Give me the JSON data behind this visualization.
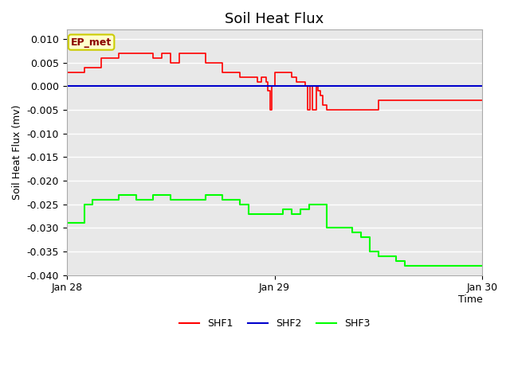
{
  "title": "Soil Heat Flux",
  "xlabel": "Time",
  "ylabel": "Soil Heat Flux (mv)",
  "ylim": [
    -0.04,
    0.012
  ],
  "yticks": [
    -0.04,
    -0.035,
    -0.03,
    -0.025,
    -0.02,
    -0.015,
    -0.01,
    -0.005,
    0.0,
    0.005,
    0.01
  ],
  "annotation_text": "EP_met",
  "annotation_color": "#8B0000",
  "annotation_bg": "#FFFFCC",
  "annotation_edge": "#CCCC00",
  "bg_color": "#E8E8E8",
  "shf1_color": "#FF0000",
  "shf2_color": "#0000CC",
  "shf3_color": "#00FF00",
  "grid_color": "#FFFFFF",
  "title_fontsize": 13,
  "label_fontsize": 9,
  "tick_fontsize": 9,
  "legend_fontsize": 9,
  "shf1_t": [
    0,
    2,
    4,
    6,
    8,
    10,
    11,
    12,
    13,
    14,
    16,
    18,
    20,
    21,
    22,
    22.5,
    23,
    23.2,
    23.5,
    23.7,
    24.0,
    24.2,
    24.5,
    25,
    26,
    26.5,
    27,
    27.5,
    27.8,
    28.1,
    28.4,
    28.8,
    29.0,
    29.3,
    29.6,
    30,
    31,
    33,
    36,
    38,
    40,
    42,
    44,
    46,
    48
  ],
  "shf1_v": [
    0.003,
    0.004,
    0.006,
    0.007,
    0.007,
    0.006,
    0.007,
    0.005,
    0.007,
    0.007,
    0.005,
    0.003,
    0.002,
    0.002,
    0.001,
    0.002,
    0.001,
    -0.001,
    -0.005,
    0.0,
    0.003,
    0.003,
    0.003,
    0.003,
    0.002,
    0.001,
    0.001,
    0.0,
    -0.005,
    0.0,
    -0.005,
    0.0,
    -0.001,
    -0.002,
    -0.004,
    -0.005,
    -0.005,
    -0.005,
    -0.003,
    -0.003,
    -0.003,
    -0.003,
    -0.003,
    -0.003,
    -0.003
  ],
  "shf3_t": [
    0,
    1,
    2,
    3,
    4,
    5,
    6,
    8,
    10,
    12,
    14,
    16,
    18,
    20,
    21,
    22,
    23,
    24,
    25,
    26,
    27,
    28,
    28.5,
    29,
    30,
    31,
    32,
    33,
    34,
    35,
    36,
    37,
    38,
    39,
    40,
    42,
    44,
    46,
    48
  ],
  "shf3_v": [
    -0.029,
    -0.029,
    -0.025,
    -0.024,
    -0.024,
    -0.024,
    -0.023,
    -0.024,
    -0.023,
    -0.024,
    -0.024,
    -0.023,
    -0.024,
    -0.025,
    -0.027,
    -0.027,
    -0.027,
    -0.027,
    -0.026,
    -0.027,
    -0.026,
    -0.025,
    -0.025,
    -0.025,
    -0.03,
    -0.03,
    -0.03,
    -0.031,
    -0.032,
    -0.035,
    -0.036,
    -0.036,
    -0.037,
    -0.038,
    -0.038,
    -0.038,
    -0.038,
    -0.038,
    -0.038
  ]
}
